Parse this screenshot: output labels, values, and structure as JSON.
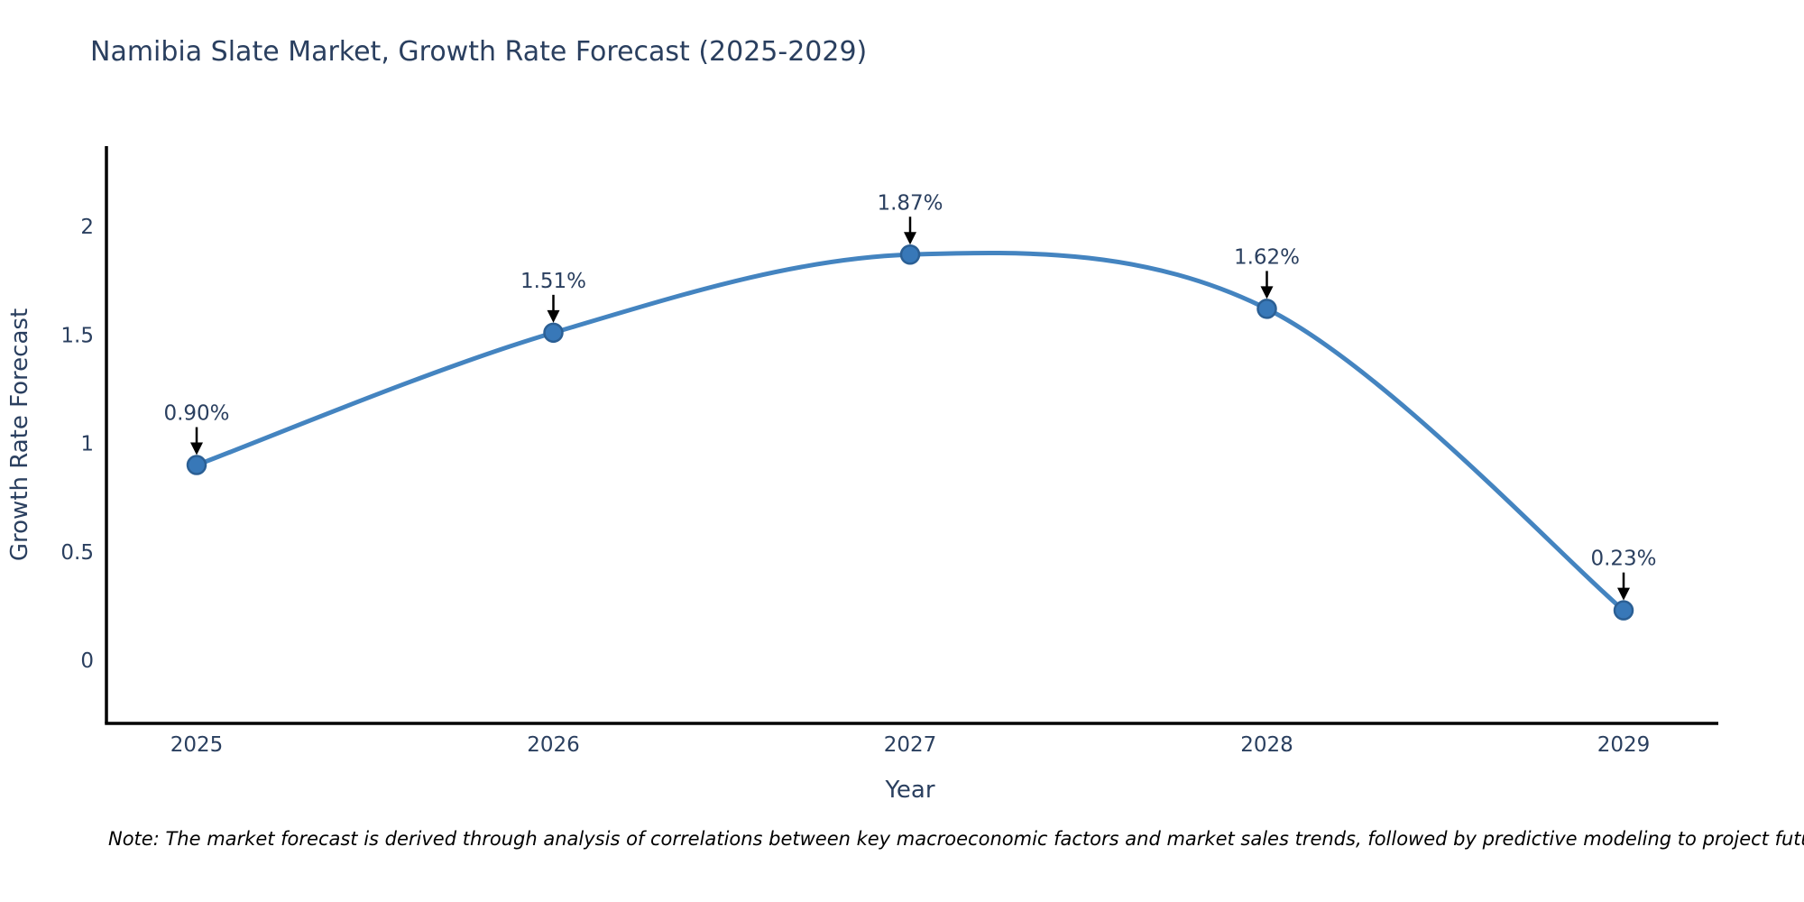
{
  "title": "Namibia Slate Market, Growth Rate Forecast (2025-2029)",
  "footnote": "Note: The market forecast is derived through analysis of correlations between key macroeconomic factors and market sales trends, followed by predictive modeling to project future sales",
  "chart_data": {
    "type": "line",
    "line_shape": "spline",
    "title": "Namibia Slate Market, Growth Rate Forecast (2025-2029)",
    "xlabel": "Year",
    "ylabel": "Growth Rate Forecast",
    "categories": [
      "2025",
      "2026",
      "2027",
      "2028",
      "2029"
    ],
    "values": [
      0.9,
      1.51,
      1.87,
      1.62,
      0.23
    ],
    "data_labels": [
      "0.90%",
      "1.51%",
      "1.87%",
      "1.62%",
      "0.23%"
    ],
    "yticks": [
      0,
      0.5,
      1,
      1.5,
      2
    ],
    "ytick_labels": [
      "0",
      "0.5",
      "1",
      "1.5",
      "2"
    ],
    "ylim": [
      -0.29,
      2.37
    ],
    "grid": false,
    "legend": false,
    "markers": true,
    "annotation_arrows": true
  },
  "colors": {
    "title_text": "#2a3f5f",
    "axis_text": "#2a3f5f",
    "tick_text": "#2a3f5f",
    "annotation_text": "#2a3f5f",
    "line": "#4484c0",
    "marker_fill": "#3878b8",
    "marker_edge": "#2b5f94",
    "axis_line": "#000000",
    "arrow": "#000000",
    "note_text": "#000000",
    "background": "#ffffff"
  }
}
